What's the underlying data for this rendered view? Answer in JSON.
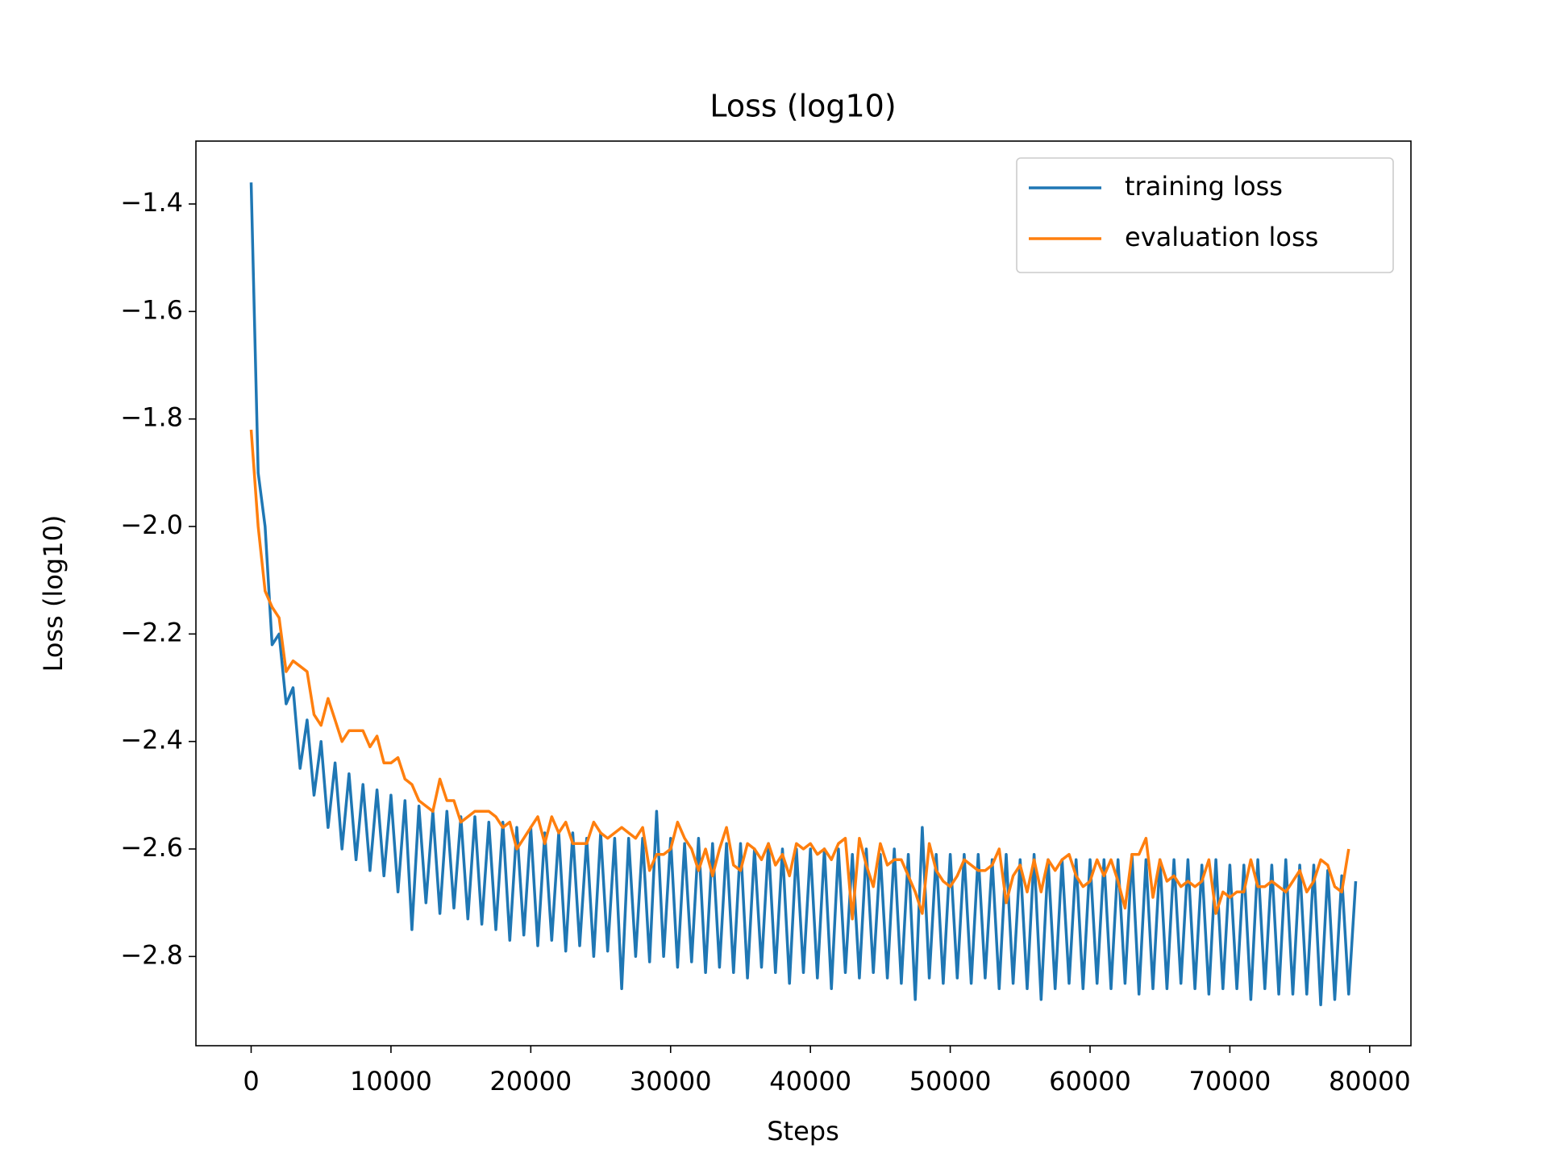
{
  "chart_data": {
    "type": "line",
    "title": "Loss (log10)",
    "xlabel": "Steps",
    "ylabel": "Loss (log10)",
    "xlim": [
      -3950,
      82950
    ],
    "ylim": [
      -2.966,
      -1.283
    ],
    "xticks": [
      0,
      10000,
      20000,
      30000,
      40000,
      50000,
      60000,
      70000,
      80000
    ],
    "yticks": [
      {
        "value": -2.8,
        "label": "−2.8"
      },
      {
        "value": -2.6,
        "label": "−2.6"
      },
      {
        "value": -2.4,
        "label": "−2.4"
      },
      {
        "value": -2.2,
        "label": "−2.2"
      },
      {
        "value": -2.0,
        "label": "−2.0"
      },
      {
        "value": -1.8,
        "label": "−1.8"
      },
      {
        "value": -1.6,
        "label": "−1.6"
      },
      {
        "value": -1.4,
        "label": "−1.4"
      }
    ],
    "grid": false,
    "legend": "upper right",
    "series": [
      {
        "name": "training loss",
        "color": "#1f77b4",
        "x": [
          0,
          500,
          1000,
          1500,
          2000,
          2500,
          3000,
          3500,
          4000,
          4500,
          5000,
          5500,
          6000,
          6500,
          7000,
          7500,
          8000,
          8500,
          9000,
          9500,
          10000,
          10500,
          11000,
          11500,
          12000,
          12500,
          13000,
          13500,
          14000,
          14500,
          15000,
          15500,
          16000,
          16500,
          17000,
          17500,
          18000,
          18500,
          19000,
          19500,
          20000,
          20500,
          21000,
          21500,
          22000,
          22500,
          23000,
          23500,
          24000,
          24500,
          25000,
          25500,
          26000,
          26500,
          27000,
          27500,
          28000,
          28500,
          29000,
          29500,
          30000,
          30500,
          31000,
          31500,
          32000,
          32500,
          33000,
          33500,
          34000,
          34500,
          35000,
          35500,
          36000,
          36500,
          37000,
          37500,
          38000,
          38500,
          39000,
          39500,
          40000,
          40500,
          41000,
          41500,
          42000,
          42500,
          43000,
          43500,
          44000,
          44500,
          45000,
          45500,
          46000,
          46500,
          47000,
          47500,
          48000,
          48500,
          49000,
          49500,
          50000,
          50500,
          51000,
          51500,
          52000,
          52500,
          53000,
          53500,
          54000,
          54500,
          55000,
          55500,
          56000,
          56500,
          57000,
          57500,
          58000,
          58500,
          59000,
          59500,
          60000,
          60500,
          61000,
          61500,
          62000,
          62500,
          63000,
          63500,
          64000,
          64500,
          65000,
          65500,
          66000,
          66500,
          67000,
          67500,
          68000,
          68500,
          69000,
          69500,
          70000,
          70500,
          71000,
          71500,
          72000,
          72500,
          73000,
          73500,
          74000,
          74500,
          75000,
          75500,
          76000,
          76500,
          77000,
          77500,
          78000,
          78500,
          79000
        ],
        "values": [
          -1.36,
          -1.9,
          -2.0,
          -2.22,
          -2.2,
          -2.33,
          -2.3,
          -2.45,
          -2.36,
          -2.5,
          -2.4,
          -2.56,
          -2.44,
          -2.6,
          -2.46,
          -2.62,
          -2.48,
          -2.64,
          -2.49,
          -2.65,
          -2.5,
          -2.68,
          -2.51,
          -2.75,
          -2.52,
          -2.7,
          -2.53,
          -2.72,
          -2.53,
          -2.71,
          -2.54,
          -2.73,
          -2.54,
          -2.74,
          -2.55,
          -2.75,
          -2.55,
          -2.77,
          -2.56,
          -2.76,
          -2.56,
          -2.78,
          -2.57,
          -2.77,
          -2.57,
          -2.79,
          -2.57,
          -2.78,
          -2.58,
          -2.8,
          -2.57,
          -2.79,
          -2.58,
          -2.86,
          -2.58,
          -2.8,
          -2.58,
          -2.81,
          -2.53,
          -2.8,
          -2.58,
          -2.82,
          -2.59,
          -2.81,
          -2.58,
          -2.83,
          -2.59,
          -2.82,
          -2.59,
          -2.83,
          -2.59,
          -2.84,
          -2.6,
          -2.82,
          -2.59,
          -2.83,
          -2.6,
          -2.85,
          -2.6,
          -2.83,
          -2.6,
          -2.84,
          -2.6,
          -2.86,
          -2.6,
          -2.83,
          -2.61,
          -2.84,
          -2.6,
          -2.83,
          -2.61,
          -2.84,
          -2.6,
          -2.85,
          -2.61,
          -2.88,
          -2.56,
          -2.84,
          -2.61,
          -2.85,
          -2.61,
          -2.84,
          -2.61,
          -2.85,
          -2.61,
          -2.84,
          -2.62,
          -2.86,
          -2.61,
          -2.85,
          -2.62,
          -2.86,
          -2.61,
          -2.88,
          -2.62,
          -2.86,
          -2.62,
          -2.85,
          -2.62,
          -2.86,
          -2.62,
          -2.85,
          -2.62,
          -2.86,
          -2.62,
          -2.85,
          -2.61,
          -2.87,
          -2.62,
          -2.86,
          -2.62,
          -2.86,
          -2.62,
          -2.85,
          -2.62,
          -2.86,
          -2.63,
          -2.87,
          -2.62,
          -2.86,
          -2.63,
          -2.86,
          -2.63,
          -2.88,
          -2.62,
          -2.86,
          -2.63,
          -2.87,
          -2.62,
          -2.87,
          -2.63,
          -2.87,
          -2.63,
          -2.89,
          -2.64,
          -2.88,
          -2.65,
          -2.87,
          -2.66
        ]
      },
      {
        "name": "evaluation loss",
        "color": "#ff7f0e",
        "x": [
          0,
          500,
          1000,
          1500,
          2000,
          2500,
          3000,
          3500,
          4000,
          4500,
          5000,
          5500,
          6000,
          6500,
          7000,
          7500,
          8000,
          8500,
          9000,
          9500,
          10000,
          10500,
          11000,
          11500,
          12000,
          12500,
          13000,
          13500,
          14000,
          14500,
          15000,
          15500,
          16000,
          16500,
          17000,
          17500,
          18000,
          18500,
          19000,
          19500,
          20000,
          20500,
          21000,
          21500,
          22000,
          22500,
          23000,
          23500,
          24000,
          24500,
          25000,
          25500,
          26000,
          26500,
          27000,
          27500,
          28000,
          28500,
          29000,
          29500,
          30000,
          30500,
          31000,
          31500,
          32000,
          32500,
          33000,
          33500,
          34000,
          34500,
          35000,
          35500,
          36000,
          36500,
          37000,
          37500,
          38000,
          38500,
          39000,
          39500,
          40000,
          40500,
          41000,
          41500,
          42000,
          42500,
          43000,
          43500,
          44000,
          44500,
          45000,
          45500,
          46000,
          46500,
          47000,
          47500,
          48000,
          48500,
          49000,
          49500,
          50000,
          50500,
          51000,
          51500,
          52000,
          52500,
          53000,
          53500,
          54000,
          54500,
          55000,
          55500,
          56000,
          56500,
          57000,
          57500,
          58000,
          58500,
          59000,
          59500,
          60000,
          60500,
          61000,
          61500,
          62000,
          62500,
          63000,
          63500,
          64000,
          64500,
          65000,
          65500,
          66000,
          66500,
          67000,
          67500,
          68000,
          68500,
          69000,
          69500,
          70000,
          70500,
          71000,
          71500,
          72000,
          72500,
          73000,
          73500,
          74000,
          74500,
          75000,
          75500,
          76000,
          76500,
          77000,
          77500,
          78000,
          78500
        ],
        "values": [
          -1.82,
          -2.0,
          -2.12,
          -2.15,
          -2.17,
          -2.27,
          -2.25,
          -2.26,
          -2.27,
          -2.35,
          -2.37,
          -2.32,
          -2.36,
          -2.4,
          -2.38,
          -2.38,
          -2.38,
          -2.41,
          -2.39,
          -2.44,
          -2.44,
          -2.43,
          -2.47,
          -2.48,
          -2.51,
          -2.52,
          -2.53,
          -2.47,
          -2.51,
          -2.51,
          -2.55,
          -2.54,
          -2.53,
          -2.53,
          -2.53,
          -2.54,
          -2.56,
          -2.55,
          -2.6,
          -2.58,
          -2.56,
          -2.54,
          -2.59,
          -2.54,
          -2.57,
          -2.55,
          -2.59,
          -2.59,
          -2.59,
          -2.55,
          -2.57,
          -2.58,
          -2.57,
          -2.56,
          -2.57,
          -2.58,
          -2.56,
          -2.64,
          -2.61,
          -2.61,
          -2.6,
          -2.55,
          -2.58,
          -2.6,
          -2.64,
          -2.6,
          -2.65,
          -2.6,
          -2.56,
          -2.63,
          -2.64,
          -2.59,
          -2.6,
          -2.62,
          -2.59,
          -2.63,
          -2.61,
          -2.65,
          -2.59,
          -2.6,
          -2.59,
          -2.61,
          -2.6,
          -2.62,
          -2.59,
          -2.58,
          -2.73,
          -2.58,
          -2.63,
          -2.67,
          -2.59,
          -2.63,
          -2.62,
          -2.62,
          -2.65,
          -2.68,
          -2.72,
          -2.59,
          -2.64,
          -2.66,
          -2.67,
          -2.65,
          -2.62,
          -2.63,
          -2.64,
          -2.64,
          -2.63,
          -2.6,
          -2.7,
          -2.65,
          -2.63,
          -2.68,
          -2.62,
          -2.68,
          -2.62,
          -2.64,
          -2.62,
          -2.61,
          -2.65,
          -2.67,
          -2.66,
          -2.62,
          -2.65,
          -2.62,
          -2.66,
          -2.71,
          -2.61,
          -2.61,
          -2.58,
          -2.69,
          -2.62,
          -2.66,
          -2.65,
          -2.67,
          -2.66,
          -2.67,
          -2.66,
          -2.62,
          -2.72,
          -2.68,
          -2.69,
          -2.68,
          -2.68,
          -2.62,
          -2.67,
          -2.67,
          -2.66,
          -2.67,
          -2.68,
          -2.66,
          -2.64,
          -2.68,
          -2.66,
          -2.62,
          -2.63,
          -2.67,
          -2.68,
          -2.6
        ]
      }
    ]
  }
}
